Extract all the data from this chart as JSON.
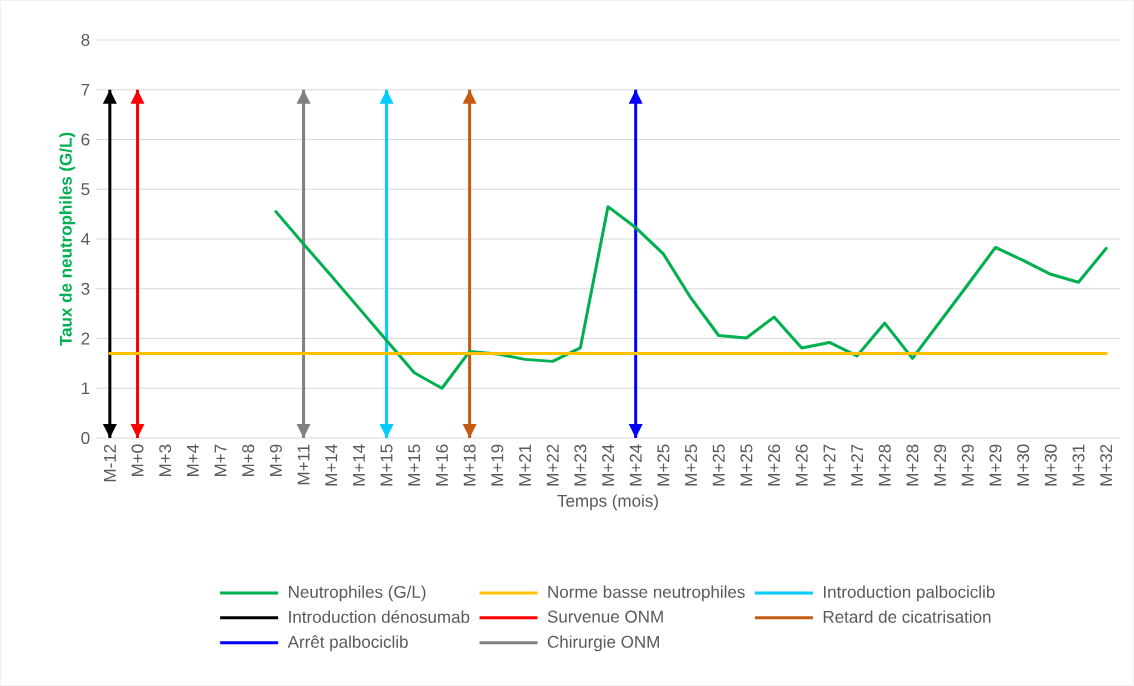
{
  "chart_data": {
    "type": "line",
    "xlabel": "Temps (mois)",
    "ylabel": "Taux de neutrophiles (G/L)",
    "categories": [
      "M-12",
      "M+0",
      "M+3",
      "M+4",
      "M+7",
      "M+8",
      "M+9",
      "M+11",
      "M+14",
      "M+14",
      "M+15",
      "M+15",
      "M+16",
      "M+18",
      "M+19",
      "M+21",
      "M+22",
      "M+23",
      "M+24",
      "M+24",
      "M+25",
      "M+25",
      "M+25",
      "M+25",
      "M+26",
      "M+26",
      "M+27",
      "M+27",
      "M+28",
      "M+28",
      "M+29",
      "M+29",
      "M+29",
      "M+30",
      "M+30",
      "M+31",
      "M+32"
    ],
    "series": [
      {
        "name": "Neutrophiles (G/L)",
        "color": "#00b050",
        "values": [
          null,
          null,
          null,
          null,
          null,
          null,
          4.55,
          3.9,
          3.26,
          2.61,
          1.96,
          1.31,
          1.0,
          1.74,
          1.69,
          1.58,
          1.54,
          1.81,
          4.65,
          4.23,
          3.7,
          2.81,
          2.06,
          2.01,
          2.43,
          1.81,
          1.92,
          1.65,
          2.31,
          1.6,
          2.34,
          3.08,
          3.83,
          3.57,
          3.29,
          3.13,
          3.81
        ]
      },
      {
        "name": "Norme basse neutrophiles",
        "color": "#ffc000",
        "values": [
          1.7,
          1.7,
          1.7,
          1.7,
          1.7,
          1.7,
          1.7,
          1.7,
          1.7,
          1.7,
          1.7,
          1.7,
          1.7,
          1.7,
          1.7,
          1.7,
          1.7,
          1.7,
          1.7,
          1.7,
          1.7,
          1.7,
          1.7,
          1.7,
          1.7,
          1.7,
          1.7,
          1.7,
          1.7,
          1.7,
          1.7,
          1.7,
          1.7,
          1.7,
          1.7,
          1.7,
          1.7
        ]
      },
      {
        "name": "Introduction palbociclib",
        "type": "bar",
        "color": "#00ccff",
        "values": [
          null,
          null,
          null,
          null,
          null,
          null,
          null,
          null,
          null,
          null,
          7,
          null,
          null,
          null,
          null,
          null,
          null,
          null,
          null,
          null,
          null,
          null,
          null,
          null,
          null,
          null,
          null,
          null,
          null,
          null,
          null,
          null,
          null,
          null,
          null,
          null,
          null
        ]
      },
      {
        "name": "Introduction dénosumab",
        "type": "bar",
        "color": "#000000",
        "values": [
          7,
          null,
          null,
          null,
          null,
          null,
          null,
          null,
          null,
          null,
          null,
          null,
          null,
          null,
          null,
          null,
          null,
          null,
          null,
          null,
          null,
          null,
          null,
          null,
          null,
          null,
          null,
          null,
          null,
          null,
          null,
          null,
          null,
          null,
          null,
          null,
          null
        ]
      },
      {
        "name": "Survenue ONM",
        "type": "bar",
        "color": "#ff0000",
        "values": [
          null,
          7,
          null,
          null,
          null,
          null,
          null,
          null,
          null,
          null,
          null,
          null,
          null,
          null,
          null,
          null,
          null,
          null,
          null,
          null,
          null,
          null,
          null,
          null,
          null,
          null,
          null,
          null,
          null,
          null,
          null,
          null,
          null,
          null,
          null,
          null,
          null
        ]
      },
      {
        "name": "Retard de cicatrisation",
        "type": "bar",
        "color": "#c55a11",
        "values": [
          null,
          null,
          null,
          null,
          null,
          null,
          null,
          null,
          null,
          null,
          null,
          null,
          null,
          7,
          null,
          null,
          null,
          null,
          null,
          null,
          null,
          null,
          null,
          null,
          null,
          null,
          null,
          null,
          null,
          null,
          null,
          null,
          null,
          null,
          null,
          null,
          null
        ]
      },
      {
        "name": "Arrêt palbociclib",
        "type": "bar",
        "color": "#0000ff",
        "values": [
          null,
          null,
          null,
          null,
          null,
          null,
          null,
          null,
          null,
          null,
          null,
          null,
          null,
          null,
          null,
          null,
          null,
          null,
          null,
          7,
          null,
          null,
          null,
          null,
          null,
          null,
          null,
          null,
          null,
          null,
          null,
          null,
          null,
          null,
          null,
          null,
          null
        ]
      },
      {
        "name": "Chirurgie ONM",
        "type": "bar",
        "color": "#808080",
        "values": [
          null,
          null,
          null,
          null,
          null,
          null,
          null,
          7,
          null,
          null,
          null,
          null,
          null,
          null,
          null,
          null,
          null,
          null,
          null,
          null,
          null,
          null,
          null,
          null,
          null,
          null,
          null,
          null,
          null,
          null,
          null,
          null,
          null,
          null,
          null,
          null,
          null
        ]
      }
    ],
    "ylim": [
      0,
      8
    ],
    "yticks": [
      0,
      1,
      2,
      3,
      4,
      5,
      6,
      7,
      8
    ],
    "grid": "y",
    "legend": "bottom"
  }
}
